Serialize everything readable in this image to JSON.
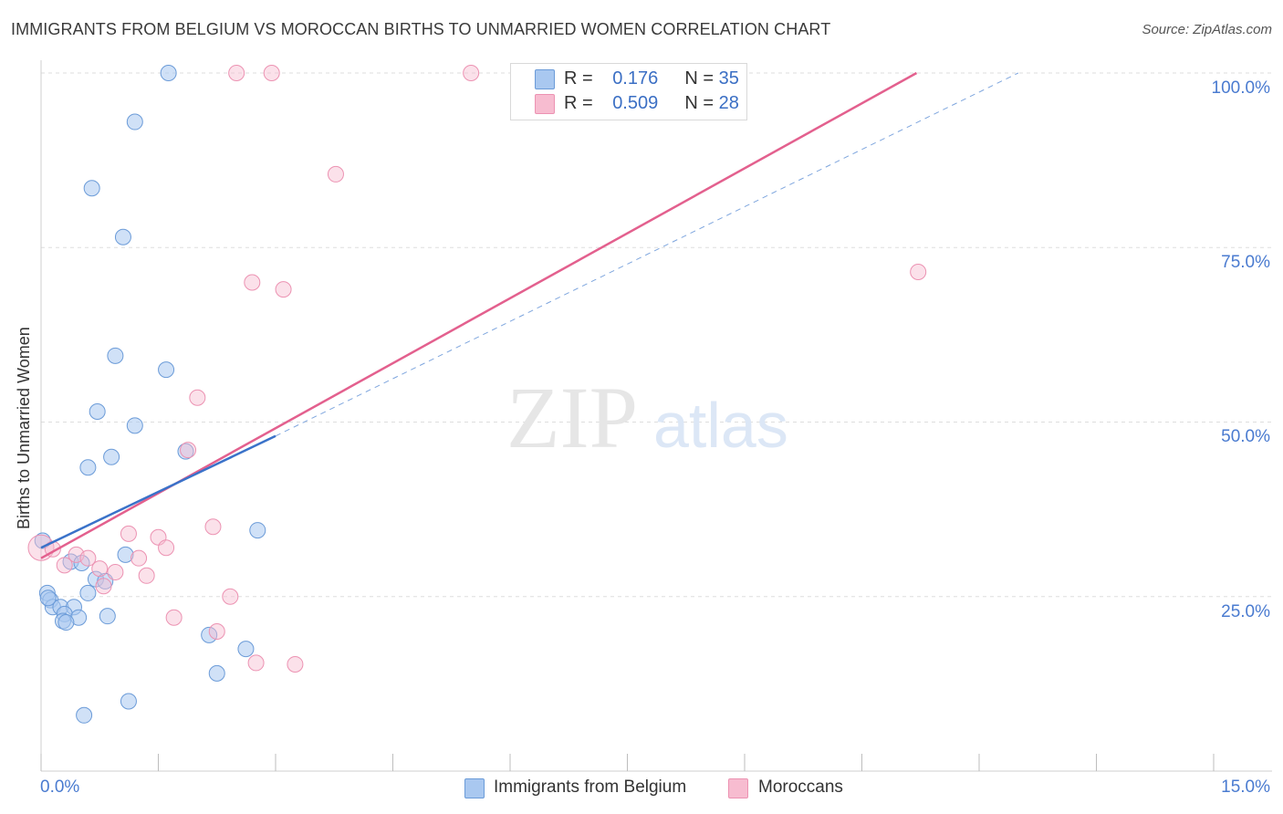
{
  "title": "IMMIGRANTS FROM BELGIUM VS MOROCCAN BIRTHS TO UNMARRIED WOMEN CORRELATION CHART",
  "source": "Source: ZipAtlas.com",
  "watermark": {
    "zip": "ZIP",
    "atlas": "atlas"
  },
  "legend": {
    "r_label": "R =",
    "n_label": "N =",
    "series": [
      {
        "name": "Immigrants from Belgium",
        "r": "0.176",
        "n": "35",
        "color": "#a9c8f0",
        "stroke": "#6b9bd8",
        "line": "#3a72c9"
      },
      {
        "name": "Moroccans",
        "r": "0.509",
        "n": "28",
        "color": "#f7bcd0",
        "stroke": "#ec92b2",
        "line": "#e3608e"
      }
    ]
  },
  "chart_data": {
    "type": "scatter",
    "title": "IMMIGRANTS FROM BELGIUM VS MOROCCAN BIRTHS TO UNMARRIED WOMEN CORRELATION CHART",
    "xlabel": "",
    "ylabel": "Births to Unmarried Women",
    "xlim": [
      0,
      15
    ],
    "ylim": [
      0,
      100
    ],
    "x_tick_labels": [
      "0.0%",
      "15.0%"
    ],
    "y_tick_labels": [
      "100.0%",
      "75.0%",
      "50.0%",
      "25.0%"
    ],
    "y_ticks": [
      100,
      75,
      50,
      25
    ],
    "grid": true,
    "series": [
      {
        "name": "Immigrants from Belgium",
        "points": [
          [
            1.63,
            100.0
          ],
          [
            1.2,
            93.0
          ],
          [
            0.65,
            83.5
          ],
          [
            1.05,
            76.5
          ],
          [
            0.95,
            59.5
          ],
          [
            1.6,
            57.5
          ],
          [
            0.72,
            51.5
          ],
          [
            1.2,
            49.5
          ],
          [
            0.9,
            45.0
          ],
          [
            0.6,
            43.5
          ],
          [
            1.85,
            45.8
          ],
          [
            2.77,
            34.5
          ],
          [
            0.02,
            33.0
          ],
          [
            1.08,
            31.0
          ],
          [
            0.38,
            30.0
          ],
          [
            0.52,
            29.8
          ],
          [
            0.7,
            27.5
          ],
          [
            0.82,
            27.2
          ],
          [
            0.6,
            25.5
          ],
          [
            0.08,
            25.5
          ],
          [
            0.12,
            24.5
          ],
          [
            0.15,
            23.5
          ],
          [
            0.25,
            23.5
          ],
          [
            0.42,
            23.5
          ],
          [
            0.3,
            22.5
          ],
          [
            0.48,
            22.0
          ],
          [
            0.85,
            22.2
          ],
          [
            0.28,
            21.5
          ],
          [
            0.32,
            21.3
          ],
          [
            2.15,
            19.5
          ],
          [
            2.62,
            17.5
          ],
          [
            2.25,
            14.0
          ],
          [
            1.12,
            10.0
          ],
          [
            0.55,
            8.0
          ],
          [
            0.09,
            24.8
          ]
        ],
        "trend": {
          "x0": 0.0,
          "y0": 32.0,
          "x1": 3.0,
          "y1": 48.0,
          "dashed_to": {
            "x": 12.5,
            "y": 100.0
          }
        }
      },
      {
        "name": "Moroccans",
        "points": [
          [
            2.5,
            100.0
          ],
          [
            2.95,
            100.0
          ],
          [
            5.5,
            100.0
          ],
          [
            3.77,
            85.5
          ],
          [
            2.7,
            70.0
          ],
          [
            3.1,
            69.0
          ],
          [
            11.22,
            71.5
          ],
          [
            2.0,
            53.5
          ],
          [
            1.88,
            46.0
          ],
          [
            2.2,
            35.0
          ],
          [
            1.12,
            34.0
          ],
          [
            1.5,
            33.5
          ],
          [
            1.6,
            32.0
          ],
          [
            0.0,
            32.0
          ],
          [
            0.15,
            31.8
          ],
          [
            0.45,
            31.0
          ],
          [
            0.6,
            30.5
          ],
          [
            1.25,
            30.5
          ],
          [
            0.3,
            29.5
          ],
          [
            0.95,
            28.5
          ],
          [
            1.35,
            28.0
          ],
          [
            0.8,
            26.5
          ],
          [
            2.42,
            25.0
          ],
          [
            1.7,
            22.0
          ],
          [
            2.25,
            20.0
          ],
          [
            2.75,
            15.5
          ],
          [
            3.25,
            15.3
          ],
          [
            0.75,
            29.0
          ]
        ],
        "trend": {
          "x0": 0.0,
          "y0": 30.5,
          "x1": 11.2,
          "y1": 100.0
        }
      }
    ]
  }
}
